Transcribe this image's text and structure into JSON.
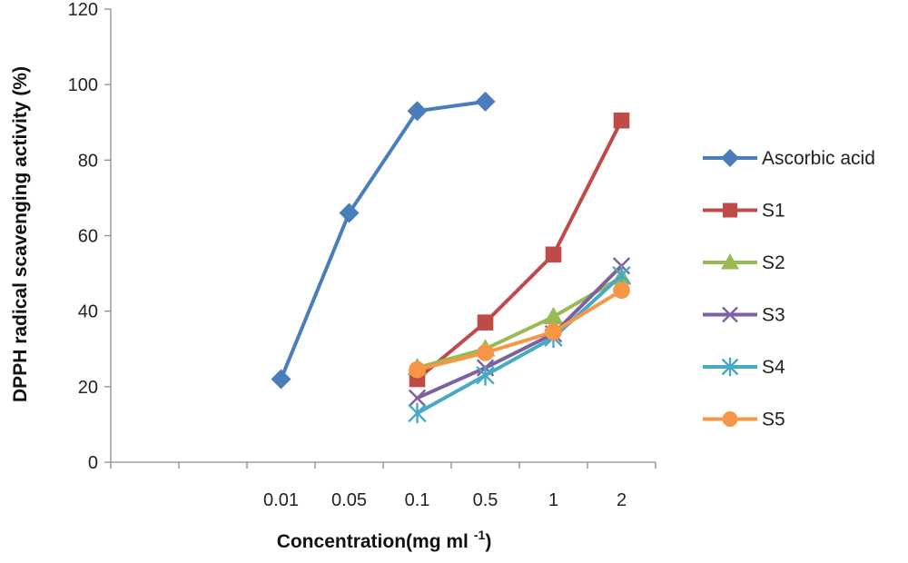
{
  "chart_data": {
    "type": "line",
    "title": "",
    "xlabel": "Concentration(mg ml",
    "xlabel_superscript": "-1",
    "xlabel_suffix": ")",
    "ylabel": "DPPH radical scavenging activity (%)",
    "ylim": [
      0,
      120
    ],
    "y_ticks": [
      "0",
      "20",
      "40",
      "60",
      "80",
      "100",
      "120"
    ],
    "categories": [
      "",
      "",
      "0.01",
      "0.05",
      "0.1",
      "0.5",
      "1",
      "2"
    ],
    "grid": false,
    "legend_position": "right",
    "series": [
      {
        "name": "Ascorbic acid",
        "color": "#4a7ebb",
        "marker": "diamond",
        "values": [
          null,
          null,
          22,
          66,
          93,
          95.5,
          null,
          null
        ]
      },
      {
        "name": "S1",
        "color": "#be4b48",
        "marker": "square",
        "values": [
          null,
          null,
          null,
          null,
          22,
          37,
          55,
          90.5
        ]
      },
      {
        "name": "S2",
        "color": "#98b954",
        "marker": "triangle",
        "values": [
          null,
          null,
          null,
          null,
          25,
          30,
          38.5,
          49
        ]
      },
      {
        "name": "S3",
        "color": "#7d60a0",
        "marker": "x",
        "values": [
          null,
          null,
          null,
          null,
          17,
          25,
          34,
          52
        ]
      },
      {
        "name": "S4",
        "color": "#46aac5",
        "marker": "star",
        "values": [
          null,
          null,
          null,
          null,
          13,
          23,
          33,
          49.5
        ]
      },
      {
        "name": "S5",
        "color": "#f79646",
        "marker": "circle",
        "values": [
          null,
          null,
          null,
          null,
          24.5,
          29,
          34.5,
          45.5
        ]
      }
    ]
  }
}
